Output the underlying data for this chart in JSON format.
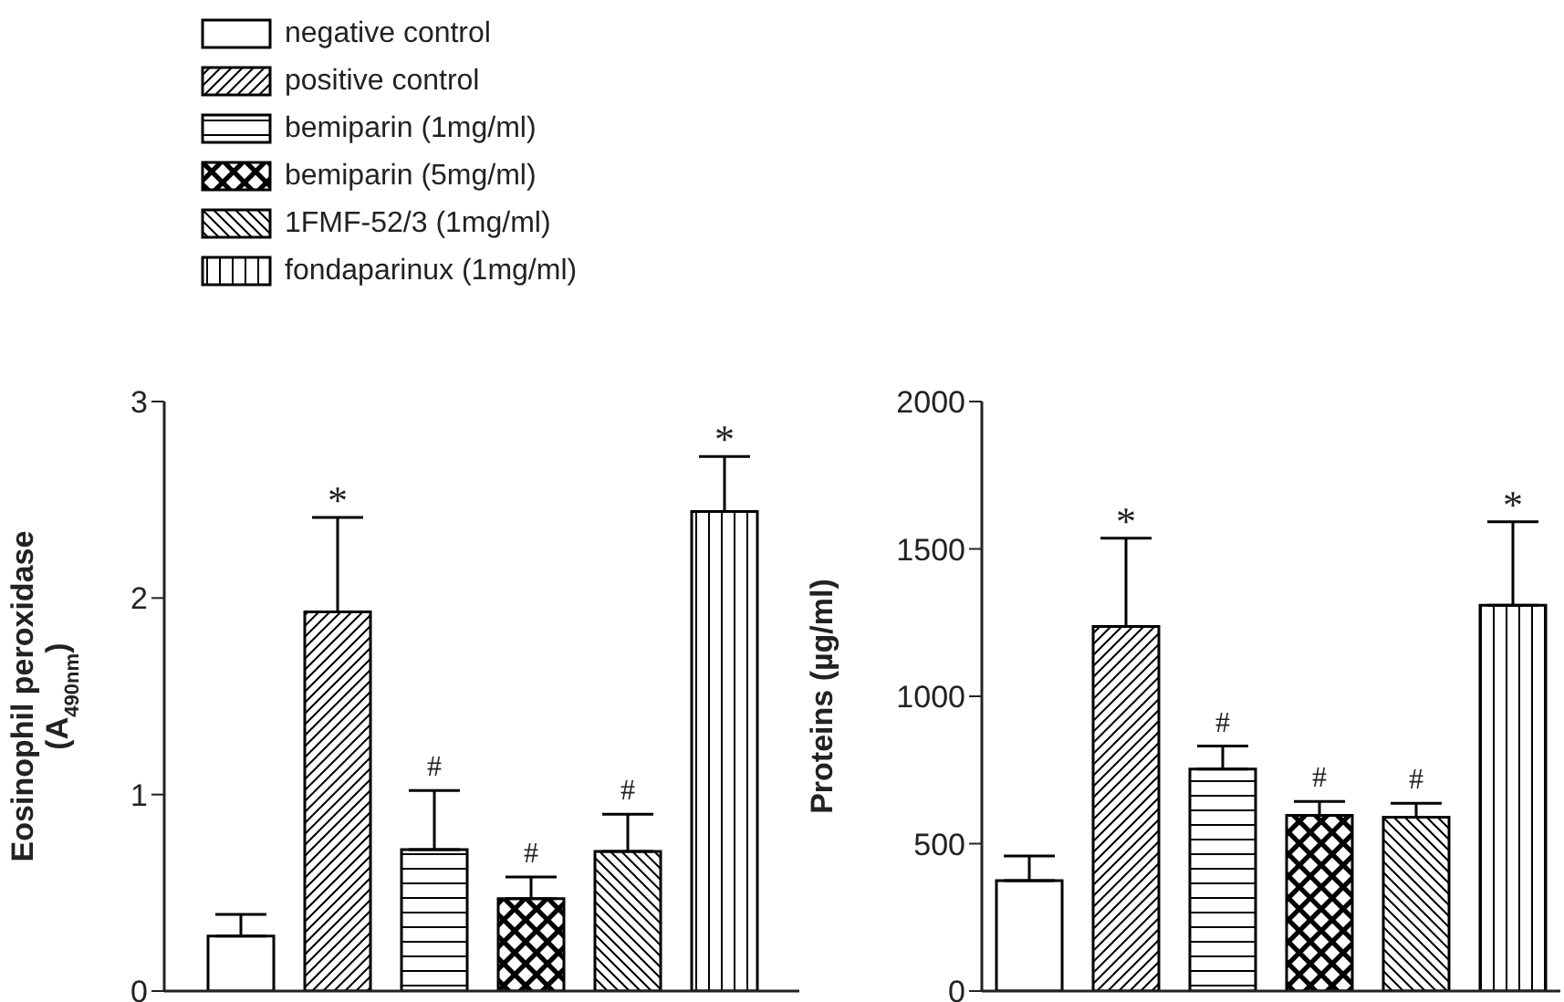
{
  "chart_data": [
    {
      "type": "bar",
      "ylabel": "Eosinophil peroxidase (A$_{490nm}$)",
      "categories": [
        null
      ],
      "ylim": [
        0,
        3
      ],
      "yticks": [
        0,
        1,
        2,
        3
      ],
      "legend": "top left",
      "tick_labels": "y",
      "series": [
        {
          "name": "negative control",
          "color": "#000000",
          "values": [
            0.28
          ],
          "errors": [
            [
              0.28,
              0.39
            ]
          ],
          "value_labels": [
            null
          ]
        },
        {
          "name": "positive control",
          "color": "#000000",
          "values": [
            1.93
          ],
          "errors": [
            [
              1.93,
              2.41
            ]
          ],
          "value_labels": [
            "*"
          ]
        },
        {
          "name": "bemiparin (1mg/ml)",
          "color": "#000000",
          "values": [
            0.72
          ],
          "errors": [
            [
              0.72,
              1.02
            ]
          ],
          "value_labels": [
            "#"
          ]
        },
        {
          "name": "bemiparin (5mg/ml)",
          "color": "#000000",
          "values": [
            0.47
          ],
          "errors": [
            [
              0.47,
              0.58
            ]
          ],
          "value_labels": [
            "#"
          ]
        },
        {
          "name": "1FMF-52/3 (1mg/ml)",
          "color": "#000000",
          "values": [
            0.71
          ],
          "errors": [
            [
              0.71,
              0.9
            ]
          ],
          "value_labels": [
            "#"
          ]
        },
        {
          "name": "fondaparinux (1mg/ml)",
          "color": "#000000",
          "values": [
            2.44
          ],
          "errors": [
            [
              2.44,
              2.72
            ]
          ],
          "value_labels": [
            "*"
          ]
        }
      ]
    },
    {
      "type": "bar",
      "ylabel": "Proteins (µg/ml)",
      "categories": [
        null
      ],
      "ylim": [
        0,
        2000
      ],
      "yticks": [
        0,
        500,
        1000,
        1500,
        2000
      ],
      "tick_labels": "y",
      "series": [
        {
          "color": "#000000",
          "values": [
            375
          ],
          "errors": [
            [
              375,
              458
            ]
          ],
          "value_labels": [
            null
          ]
        },
        {
          "color": "#000000",
          "values": [
            1237
          ],
          "errors": [
            [
              1237,
              1536
            ]
          ],
          "value_labels": [
            "*"
          ]
        },
        {
          "color": "#000000",
          "values": [
            753
          ],
          "errors": [
            [
              753,
              831
            ]
          ],
          "value_labels": [
            "#"
          ]
        },
        {
          "color": "#000000",
          "values": [
            596
          ],
          "errors": [
            [
              596,
              643
            ]
          ],
          "value_labels": [
            "#"
          ]
        },
        {
          "color": "#000000",
          "values": [
            590
          ],
          "errors": [
            [
              590,
              637
            ]
          ],
          "value_labels": [
            "#"
          ]
        },
        {
          "color": "#000000",
          "values": [
            1309
          ],
          "errors": [
            [
              1309,
              1592
            ]
          ],
          "value_labels": [
            "*"
          ]
        }
      ]
    }
  ]
}
